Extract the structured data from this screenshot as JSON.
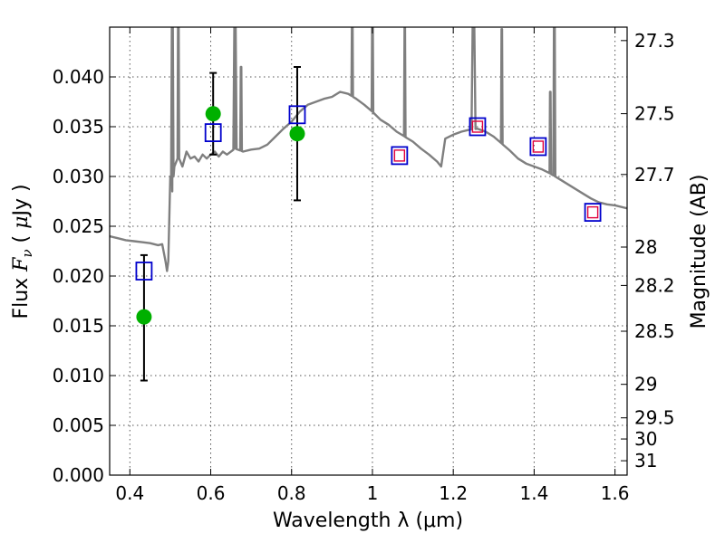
{
  "chart_data": {
    "type": "scatter",
    "title": "",
    "xlabel": "Wavelength  λ (μm)",
    "ylabel_parts": [
      "Flux ",
      "F",
      "ν",
      " ( ",
      "μ",
      "Jy )"
    ],
    "y2label": "Magnitude (AB)",
    "xlim": [
      0.35,
      1.63
    ],
    "ylim": [
      0.0,
      0.045
    ],
    "grid": true,
    "x_ticks": [
      0.4,
      0.6,
      0.8,
      1.0,
      1.2,
      1.4,
      1.6
    ],
    "x_tick_labels": [
      "0.4",
      "0.6",
      "0.8",
      "1",
      "1.2",
      "1.4",
      "1.6"
    ],
    "y_ticks": [
      0.0,
      0.005,
      0.01,
      0.015,
      0.02,
      0.025,
      0.03,
      0.035,
      0.04
    ],
    "y_tick_labels": [
      "0.000",
      "0.005",
      "0.010",
      "0.015",
      "0.020",
      "0.025",
      "0.030",
      "0.035",
      "0.040"
    ],
    "y2_tick_labels": [
      "27.3",
      "27.5",
      "27.7",
      "28",
      "28.2",
      "28.5",
      "29",
      "29.5",
      "30",
      "31"
    ],
    "colors": {
      "template": "#7f7f7f",
      "observed": "#00b000",
      "model_box": "#0000cc",
      "model_inner": "#e0003c",
      "errorbar": "#000000",
      "grid": "#555555"
    },
    "series": [
      {
        "kind": "model-spectrum",
        "points": [
          [
            0.35,
            0.024
          ],
          [
            0.37,
            0.0238
          ],
          [
            0.39,
            0.0236
          ],
          [
            0.41,
            0.0235
          ],
          [
            0.43,
            0.0234
          ],
          [
            0.45,
            0.0233
          ],
          [
            0.47,
            0.0231
          ],
          [
            0.48,
            0.0232
          ],
          [
            0.488,
            0.0215
          ],
          [
            0.492,
            0.0205
          ],
          [
            0.495,
            0.0215
          ],
          [
            0.5,
            0.03
          ],
          [
            0.505,
            0.0285
          ],
          [
            0.51,
            0.031
          ],
          [
            0.52,
            0.032
          ],
          [
            0.53,
            0.031
          ],
          [
            0.54,
            0.0325
          ],
          [
            0.55,
            0.0318
          ],
          [
            0.56,
            0.032
          ],
          [
            0.57,
            0.0315
          ],
          [
            0.58,
            0.0322
          ],
          [
            0.59,
            0.0318
          ],
          [
            0.6,
            0.0322
          ],
          [
            0.61,
            0.0325
          ],
          [
            0.62,
            0.032
          ],
          [
            0.63,
            0.0325
          ],
          [
            0.64,
            0.0322
          ],
          [
            0.66,
            0.0328
          ],
          [
            0.68,
            0.0325
          ],
          [
            0.7,
            0.0327
          ],
          [
            0.72,
            0.0328
          ],
          [
            0.74,
            0.0332
          ],
          [
            0.76,
            0.034
          ],
          [
            0.78,
            0.0348
          ],
          [
            0.8,
            0.0355
          ],
          [
            0.82,
            0.0365
          ],
          [
            0.84,
            0.0372
          ],
          [
            0.86,
            0.0375
          ],
          [
            0.88,
            0.0378
          ],
          [
            0.9,
            0.038
          ],
          [
            0.92,
            0.0385
          ],
          [
            0.94,
            0.0383
          ],
          [
            0.96,
            0.0378
          ],
          [
            0.98,
            0.0372
          ],
          [
            1.0,
            0.0365
          ],
          [
            1.02,
            0.0357
          ],
          [
            1.04,
            0.0352
          ],
          [
            1.06,
            0.0345
          ],
          [
            1.08,
            0.034
          ],
          [
            1.1,
            0.0335
          ],
          [
            1.12,
            0.0328
          ],
          [
            1.14,
            0.0322
          ],
          [
            1.16,
            0.0315
          ],
          [
            1.17,
            0.031
          ],
          [
            1.18,
            0.0338
          ],
          [
            1.2,
            0.0342
          ],
          [
            1.22,
            0.0345
          ],
          [
            1.24,
            0.0347
          ],
          [
            1.26,
            0.0348
          ],
          [
            1.28,
            0.0345
          ],
          [
            1.3,
            0.034
          ],
          [
            1.32,
            0.0333
          ],
          [
            1.34,
            0.0326
          ],
          [
            1.36,
            0.0318
          ],
          [
            1.38,
            0.0313
          ],
          [
            1.4,
            0.031
          ],
          [
            1.42,
            0.0307
          ],
          [
            1.44,
            0.0303
          ],
          [
            1.46,
            0.0298
          ],
          [
            1.48,
            0.0293
          ],
          [
            1.5,
            0.0288
          ],
          [
            1.52,
            0.0283
          ],
          [
            1.54,
            0.0278
          ],
          [
            1.56,
            0.0274
          ],
          [
            1.58,
            0.0272
          ],
          [
            1.6,
            0.0271
          ],
          [
            1.63,
            0.0268
          ]
        ],
        "emission_spikes": [
          {
            "x": 0.505,
            "peak": 0.0465,
            "width": 0.006
          },
          {
            "x": 0.52,
            "peak": 0.0465,
            "width": 0.004
          },
          {
            "x": 0.66,
            "peak": 0.0465,
            "width": 0.008
          },
          {
            "x": 0.675,
            "peak": 0.041,
            "width": 0.004
          },
          {
            "x": 0.95,
            "peak": 0.0465,
            "width": 0.004
          },
          {
            "x": 1.0,
            "peak": 0.0465,
            "width": 0.004
          },
          {
            "x": 1.08,
            "peak": 0.0455,
            "width": 0.004
          },
          {
            "x": 1.25,
            "peak": 0.0465,
            "width": 0.01
          },
          {
            "x": 1.32,
            "peak": 0.0448,
            "width": 0.004
          },
          {
            "x": 1.44,
            "peak": 0.0385,
            "width": 0.004
          },
          {
            "x": 1.45,
            "peak": 0.0465,
            "width": 0.005
          }
        ]
      },
      {
        "kind": "observed-flux",
        "points": [
          {
            "x": 0.435,
            "y": 0.0159,
            "ylo": 0.0095,
            "yhi": 0.0221
          },
          {
            "x": 0.606,
            "y": 0.0363,
            "ylo": 0.0322,
            "yhi": 0.0404
          },
          {
            "x": 0.814,
            "y": 0.0343,
            "ylo": 0.0276,
            "yhi": 0.041
          }
        ]
      },
      {
        "kind": "model-flux-boxes",
        "points": [
          {
            "x": 0.435,
            "y": 0.0205,
            "inner": false
          },
          {
            "x": 0.606,
            "y": 0.0344,
            "inner": false
          },
          {
            "x": 0.814,
            "y": 0.0362,
            "inner": false
          },
          {
            "x": 1.067,
            "y": 0.0321,
            "inner": true
          },
          {
            "x": 1.26,
            "y": 0.035,
            "inner": true
          },
          {
            "x": 1.41,
            "y": 0.033,
            "inner": true
          },
          {
            "x": 1.545,
            "y": 0.0264,
            "inner": true
          }
        ]
      }
    ]
  }
}
